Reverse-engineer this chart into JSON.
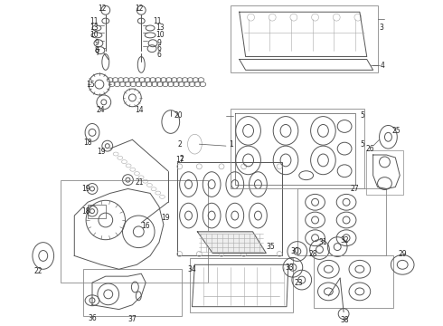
{
  "bg_color": "#ffffff",
  "fig_width": 4.9,
  "fig_height": 3.6,
  "dpi": 100,
  "line_color": "#555555",
  "gray": "#888888",
  "light_gray": "#aaaaaa",
  "label_color": "#222222",
  "label_fs": 5.5,
  "lw_main": 0.7,
  "lw_thin": 0.5,
  "lw_thick": 1.0
}
